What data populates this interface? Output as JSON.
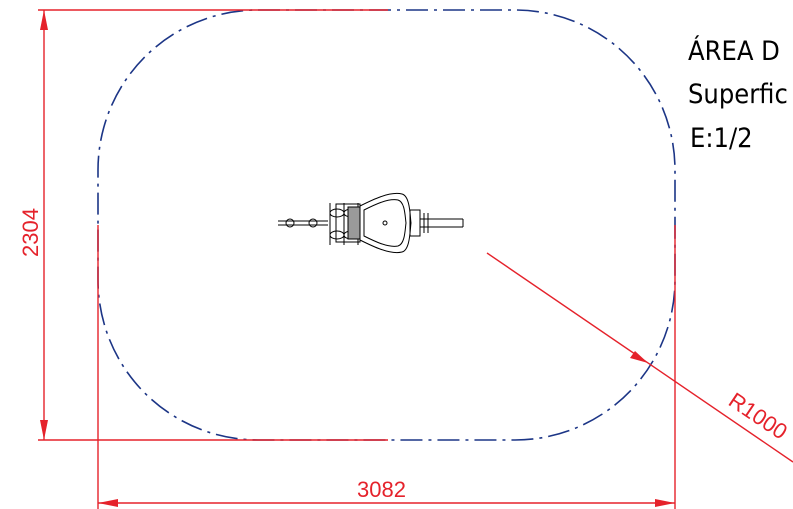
{
  "drawing": {
    "dimensions": {
      "height_label": "2304",
      "width_label": "3082",
      "radius_label": "R1000"
    },
    "notes": {
      "line1": "ÁREA D",
      "line2": "Superfic",
      "line3": "E:1/2"
    },
    "colors": {
      "dimension": "#e5222b",
      "boundary": "#1c3586",
      "equipment": "#000000"
    },
    "icons": {
      "equipment": "spring-rider-topview-icon"
    }
  }
}
